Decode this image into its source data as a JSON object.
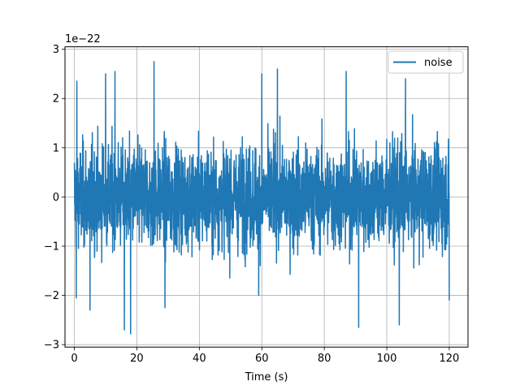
{
  "chart_data": {
    "type": "line",
    "title": "",
    "xlabel": "Time (s)",
    "ylabel": "",
    "y_offset_label": "1e−22",
    "y_scale_factor": 1e-22,
    "xlim": [
      -3,
      126
    ],
    "ylim": [
      -3.05,
      3.05
    ],
    "x_ticks": [
      0,
      20,
      40,
      60,
      80,
      100,
      120
    ],
    "x_tick_labels": [
      "0",
      "20",
      "40",
      "60",
      "80",
      "100",
      "120"
    ],
    "y_ticks": [
      -3,
      -2,
      -1,
      0,
      1,
      2,
      3
    ],
    "y_tick_labels": [
      "−3",
      "−2",
      "−1",
      "0",
      "1",
      "2",
      "3"
    ],
    "grid": true,
    "legend_position": "top-right",
    "series": [
      {
        "name": "noise",
        "color": "#1f77b4",
        "x_start": 0,
        "x_end": 120,
        "y_unit": "1e-22",
        "typical_amplitude": [
          -1.5,
          1.5
        ],
        "peak_values": [
          {
            "x": 0.8,
            "y": 2.35
          },
          {
            "x": 0.6,
            "y": -2.05
          },
          {
            "x": 5,
            "y": -2.3
          },
          {
            "x": 10,
            "y": 2.5
          },
          {
            "x": 13,
            "y": 2.55
          },
          {
            "x": 16,
            "y": -2.7
          },
          {
            "x": 18,
            "y": -2.78
          },
          {
            "x": 25.5,
            "y": 2.75
          },
          {
            "x": 29,
            "y": -2.25
          },
          {
            "x": 59,
            "y": -2.0
          },
          {
            "x": 60,
            "y": 2.5
          },
          {
            "x": 65,
            "y": 2.6
          },
          {
            "x": 87,
            "y": 2.55
          },
          {
            "x": 91,
            "y": -2.65
          },
          {
            "x": 104,
            "y": -2.6
          },
          {
            "x": 106,
            "y": 2.4
          },
          {
            "x": 120,
            "y": -2.1
          }
        ]
      }
    ]
  }
}
